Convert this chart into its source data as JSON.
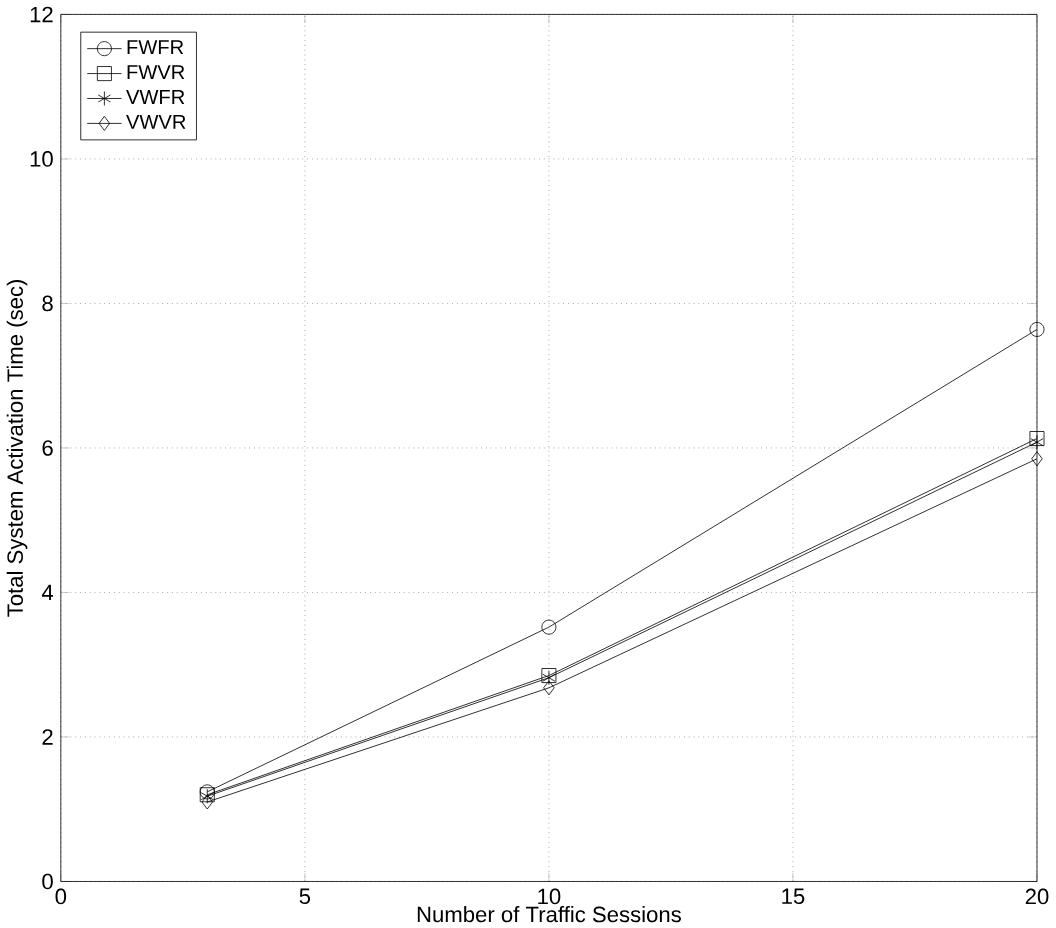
{
  "chart_data": {
    "type": "line",
    "xlabel": "Number of Traffic Sessions",
    "ylabel": "Total System Activation Time (sec)",
    "x": [
      3,
      10,
      20
    ],
    "series": [
      {
        "name": "FWFR",
        "color": "#000000",
        "marker": "circle",
        "values": [
          1.24,
          3.52,
          7.64
        ]
      },
      {
        "name": "FWVR",
        "color": "#000000",
        "marker": "square",
        "values": [
          1.2,
          2.85,
          6.13
        ]
      },
      {
        "name": "VWFR",
        "color": "#000000",
        "marker": "cross",
        "values": [
          1.18,
          2.82,
          6.08
        ]
      },
      {
        "name": "VWVR",
        "color": "#000000",
        "marker": "diamond",
        "values": [
          1.1,
          2.68,
          5.85
        ]
      }
    ],
    "xlim": [
      0,
      20
    ],
    "ylim": [
      0,
      12
    ],
    "xticks": [
      0,
      5,
      10,
      15,
      20
    ],
    "yticks": [
      0,
      2,
      4,
      6,
      8,
      10,
      12
    ],
    "grid": true,
    "legend": "top left",
    "line_style": "solid"
  }
}
